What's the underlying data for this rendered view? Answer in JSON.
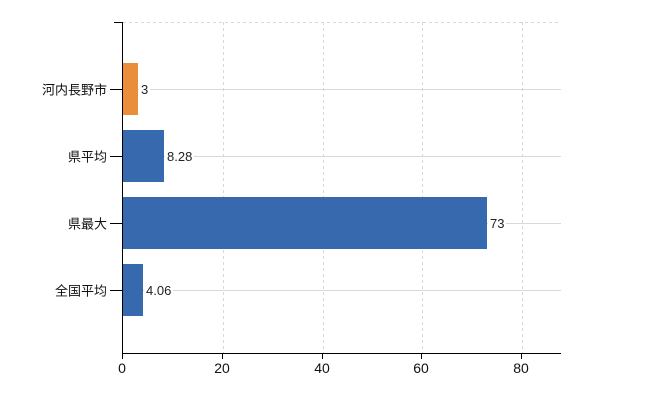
{
  "chart_data": {
    "type": "bar",
    "orientation": "horizontal",
    "title": "",
    "xlabel": "",
    "ylabel": "",
    "categories": [
      "河内長野市",
      "県平均",
      "県最大",
      "全国平均"
    ],
    "values": [
      3,
      8.28,
      73,
      4.06
    ],
    "value_labels": [
      "3",
      "8.28",
      "73",
      "4.06"
    ],
    "bar_colors": [
      "#EB8E3C",
      "#3769AE",
      "#3769AE",
      "#3769AE"
    ],
    "x_ticks": [
      0,
      20,
      40,
      60,
      80
    ],
    "x_tick_labels": [
      "0",
      "20",
      "40",
      "60",
      "80"
    ],
    "xlim": [
      0,
      88
    ],
    "grid": "dashed vertical gridlines at x ticks; light solid horizontal line at each category center; dashed top border",
    "legend_position": "none"
  },
  "colors": {
    "background": "#ffffff",
    "axis": "#000000",
    "grid_dashed": "#d8d8d8",
    "grid_category_line": "#d7dcd3",
    "text": "#111111",
    "bar_orange": "#EB8E3C",
    "bar_blue": "#3769AE"
  }
}
